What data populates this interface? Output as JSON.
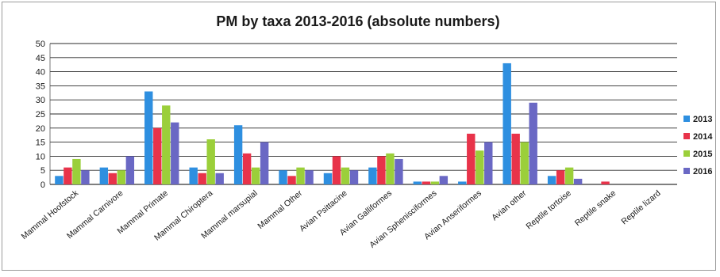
{
  "chart_data": {
    "type": "bar",
    "title": "PM by taxa 2013-2016 (absolute numbers)",
    "xlabel": "",
    "ylabel": "",
    "ylim": [
      0,
      50
    ],
    "yticks": [
      0,
      5,
      10,
      15,
      20,
      25,
      30,
      35,
      40,
      45,
      50
    ],
    "grid": true,
    "legend_position": "right",
    "categories": [
      "Mammal Hoofstock",
      "Mammal Carnivore",
      "Mammal Primate",
      "Mammal Chiroptera",
      "Mammal marsupial",
      "Mammal Other",
      "Avian Psittacine",
      "Avian Galliformes",
      "Avian Sphenisciformes",
      "Avian Anseriformes",
      "Avian other",
      "Reptile tortoise",
      "Reptile snake",
      "Reptile lizard"
    ],
    "series": [
      {
        "name": "2013",
        "color": "#2e8fe0",
        "values": [
          3,
          6,
          33,
          6,
          21,
          5,
          4,
          6,
          1,
          1,
          43,
          3,
          0,
          0
        ]
      },
      {
        "name": "2014",
        "color": "#e8334a",
        "values": [
          6,
          4,
          20,
          4,
          11,
          3,
          10,
          10,
          1,
          18,
          18,
          5,
          1,
          0
        ]
      },
      {
        "name": "2015",
        "color": "#9bcf3a",
        "values": [
          9,
          5,
          28,
          16,
          6,
          6,
          6,
          11,
          1,
          12,
          15,
          6,
          0,
          0
        ]
      },
      {
        "name": "2016",
        "color": "#6a68c4",
        "values": [
          5,
          10,
          22,
          4,
          15,
          5,
          5,
          9,
          3,
          15,
          29,
          2,
          0,
          0
        ]
      }
    ]
  }
}
